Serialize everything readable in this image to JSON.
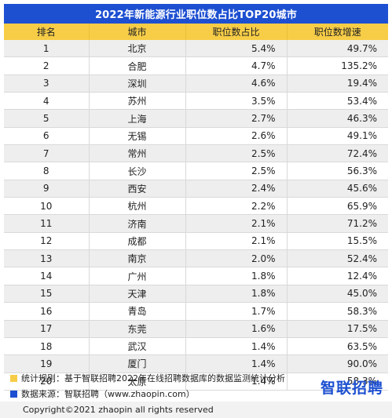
{
  "title": "2022年新能源行业职位数占比TOP20城市",
  "headers": [
    "排名",
    "城市",
    "职位数占比",
    "职位数增速"
  ],
  "rows": [
    {
      "rank": "1",
      "city": "北京",
      "share": "5.4%",
      "growth": "49.7%"
    },
    {
      "rank": "2",
      "city": "合肥",
      "share": "4.7%",
      "growth": "135.2%"
    },
    {
      "rank": "3",
      "city": "深圳",
      "share": "4.6%",
      "growth": "19.4%"
    },
    {
      "rank": "4",
      "city": "苏州",
      "share": "3.5%",
      "growth": "53.4%"
    },
    {
      "rank": "5",
      "city": "上海",
      "share": "2.7%",
      "growth": "46.3%"
    },
    {
      "rank": "6",
      "city": "无锡",
      "share": "2.6%",
      "growth": "49.1%"
    },
    {
      "rank": "7",
      "city": "常州",
      "share": "2.5%",
      "growth": "72.4%"
    },
    {
      "rank": "8",
      "city": "长沙",
      "share": "2.5%",
      "growth": "56.3%"
    },
    {
      "rank": "9",
      "city": "西安",
      "share": "2.4%",
      "growth": "45.6%"
    },
    {
      "rank": "10",
      "city": "杭州",
      "share": "2.2%",
      "growth": "65.9%"
    },
    {
      "rank": "11",
      "city": "济南",
      "share": "2.1%",
      "growth": "71.2%"
    },
    {
      "rank": "12",
      "city": "成都",
      "share": "2.1%",
      "growth": "15.5%"
    },
    {
      "rank": "13",
      "city": "南京",
      "share": "2.0%",
      "growth": "52.4%"
    },
    {
      "rank": "14",
      "city": "广州",
      "share": "1.8%",
      "growth": "12.4%"
    },
    {
      "rank": "15",
      "city": "天津",
      "share": "1.8%",
      "growth": "45.0%"
    },
    {
      "rank": "16",
      "city": "青岛",
      "share": "1.7%",
      "growth": "58.3%"
    },
    {
      "rank": "17",
      "city": "东莞",
      "share": "1.6%",
      "growth": "17.5%"
    },
    {
      "rank": "18",
      "city": "武汉",
      "share": "1.4%",
      "growth": "63.5%"
    },
    {
      "rank": "19",
      "city": "厦门",
      "share": "1.4%",
      "growth": "90.0%"
    },
    {
      "rank": "20",
      "city": "太原",
      "share": "1.4%",
      "growth": "58.3%"
    }
  ],
  "notes": {
    "rule": "统计规则：基于智联招聘2022年在线招聘数据库的数据监测统计分析",
    "source": "数据来源：智联招聘（www.zhaopin.com）"
  },
  "brand": "智联招聘",
  "footer": "Copyright©2021 zhaopin all rights reserved",
  "colors": {
    "title_bg": "#1d4fd1",
    "header_bg": "#f7cd47",
    "row_alt_bg": "#eeeeee",
    "rule_marker": "#f7cd47",
    "source_marker": "#1d4fd1",
    "brand": "#1d4fd1"
  }
}
